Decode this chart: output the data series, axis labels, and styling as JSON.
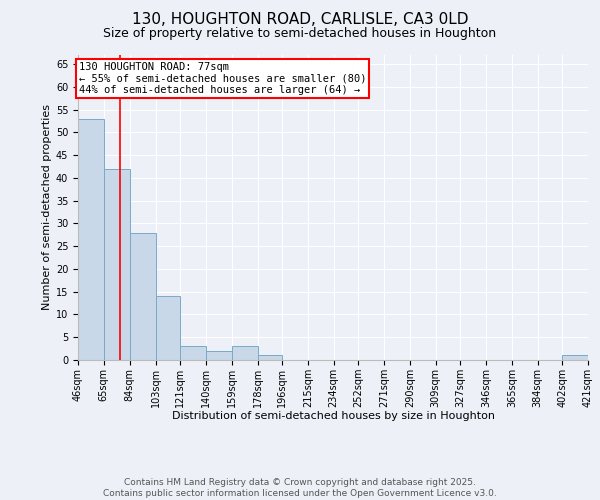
{
  "title1": "130, HOUGHTON ROAD, CARLISLE, CA3 0LD",
  "title2": "Size of property relative to semi-detached houses in Houghton",
  "xlabel": "Distribution of semi-detached houses by size in Houghton",
  "ylabel": "Number of semi-detached properties",
  "bin_labels": [
    "46sqm",
    "65sqm",
    "84sqm",
    "103sqm",
    "121sqm",
    "140sqm",
    "159sqm",
    "178sqm",
    "196sqm",
    "215sqm",
    "234sqm",
    "252sqm",
    "271sqm",
    "290sqm",
    "309sqm",
    "327sqm",
    "346sqm",
    "365sqm",
    "384sqm",
    "402sqm",
    "421sqm"
  ],
  "bin_edges": [
    46,
    65,
    84,
    103,
    121,
    140,
    159,
    178,
    196,
    215,
    234,
    252,
    271,
    290,
    309,
    327,
    346,
    365,
    384,
    402,
    421
  ],
  "bar_heights": [
    53,
    42,
    28,
    14,
    3,
    2,
    3,
    1,
    0,
    0,
    0,
    0,
    0,
    0,
    0,
    0,
    0,
    0,
    0,
    1,
    0
  ],
  "bar_color": "#c8d8e8",
  "bar_edge_color": "#7aaac8",
  "red_line_x": 77,
  "ylim": [
    0,
    67
  ],
  "yticks": [
    0,
    5,
    10,
    15,
    20,
    25,
    30,
    35,
    40,
    45,
    50,
    55,
    60,
    65
  ],
  "annotation_text": "130 HOUGHTON ROAD: 77sqm\n← 55% of semi-detached houses are smaller (80)\n44% of semi-detached houses are larger (64) →",
  "footer1": "Contains HM Land Registry data © Crown copyright and database right 2025.",
  "footer2": "Contains public sector information licensed under the Open Government Licence v3.0.",
  "bg_color": "#edf1f7",
  "title1_fontsize": 11,
  "title2_fontsize": 9,
  "axis_label_fontsize": 8,
  "tick_fontsize": 7,
  "annotation_fontsize": 7.5,
  "footer_fontsize": 6.5
}
